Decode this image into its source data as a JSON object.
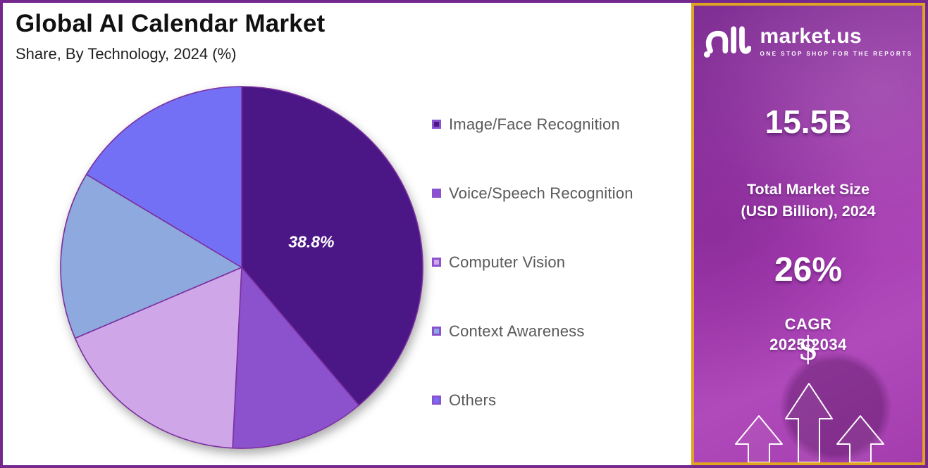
{
  "page": {
    "outer_border_color": "#74288E",
    "chart_background": "#FFFFFF"
  },
  "header": {
    "title": "Global AI Calendar Market",
    "subtitle": "Share, By Technology, 2024 (%)"
  },
  "chart_data": {
    "type": "pie",
    "title": "Global AI Calendar Market",
    "subtitle": "Share, By Technology, 2024 (%)",
    "categories": [
      "Image/Face Recognition",
      "Voice/Speech Recognition",
      "Computer Vision",
      "Context Awareness",
      "Others"
    ],
    "values": [
      38.8,
      12.0,
      17.8,
      15.0,
      16.4
    ],
    "colors": [
      "#4B1786",
      "#8C52CE",
      "#CFA7E9",
      "#8DA9DD",
      "#7470F5"
    ],
    "slice_border_color": "#7B2F9E",
    "data_label": {
      "slice_index": 0,
      "text": "38.8%",
      "color": "#FFFFFF"
    },
    "legend_position": "right",
    "legend_text_color": "#595959",
    "legend_swatch_border_color": "#8A52D1",
    "layout": {
      "center": [
        339,
        376
      ],
      "radius": 257,
      "start_angle_deg": 0,
      "direction": "clockwise",
      "label_radius_ratio": 0.41
    }
  },
  "sidebar": {
    "brand": {
      "name": "market.us",
      "tagline": "ONE STOP SHOP FOR THE REPORTS"
    },
    "stats": {
      "market_size_value": "15.5B",
      "market_size_label": [
        "Total Market Size",
        "(USD Billion), 2024"
      ],
      "cagr_value": "26%",
      "cagr_label": [
        "CAGR",
        "2025-2034"
      ]
    },
    "dollar_symbol": "$",
    "colors": {
      "border": "#DFA421",
      "background_top": "#7E2F92",
      "background_bottom": "#A43CAE",
      "text": "#FFFFFF"
    }
  }
}
